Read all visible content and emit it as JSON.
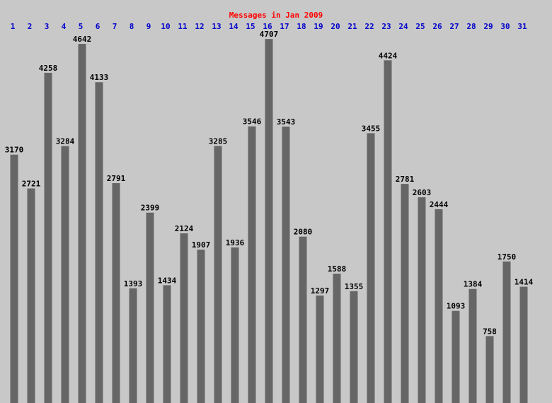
{
  "chart_data": {
    "type": "bar",
    "title": "Messages in Jan 2009",
    "categories": [
      "1",
      "2",
      "3",
      "4",
      "5",
      "6",
      "7",
      "8",
      "9",
      "10",
      "11",
      "12",
      "13",
      "14",
      "15",
      "16",
      "17",
      "18",
      "19",
      "20",
      "21",
      "22",
      "23",
      "24",
      "25",
      "26",
      "27",
      "28",
      "29",
      "30",
      "31"
    ],
    "values": [
      3170,
      2721,
      4258,
      3284,
      4642,
      4133,
      2791,
      1393,
      2399,
      1434,
      2124,
      1907,
      3285,
      1936,
      3546,
      4707,
      3543,
      2080,
      1297,
      1588,
      1355,
      3455,
      4424,
      2781,
      2603,
      2444,
      1093,
      1384,
      758,
      1750,
      1414
    ],
    "color": "#666666",
    "title_color": "#ff0000",
    "category_color": "#0000cc",
    "ylim": [
      0,
      5000
    ],
    "grid": false
  }
}
